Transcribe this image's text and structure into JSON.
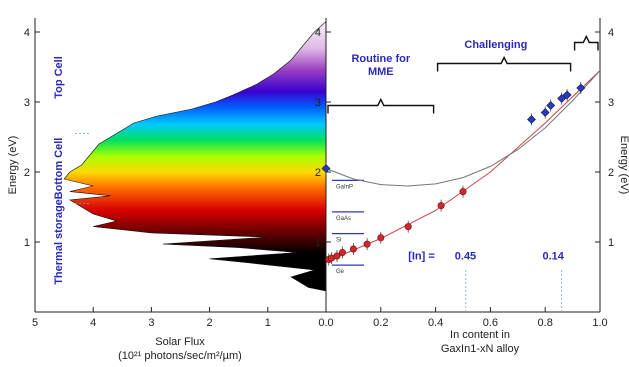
{
  "chart_data": [
    {
      "type": "area",
      "panel": "left",
      "xlabel": "Solar Flux",
      "xlabel_sub": "(10²¹ photons/sec/m²/µm)",
      "ylabel": "Energy (eV)",
      "xlim": [
        5,
        0
      ],
      "ylim": [
        0,
        4.2
      ],
      "x_ticks": [
        "5",
        "4",
        "3",
        "2",
        "1",
        "0.0"
      ],
      "y_ticks": [
        "1",
        "2",
        "3",
        "4"
      ],
      "gradient_fill": "spectrum",
      "series": [
        {
          "points": [
            [
              0.0,
              0.3
            ],
            [
              0.3,
              0.35
            ],
            [
              0.6,
              0.5
            ],
            [
              0.2,
              0.6
            ],
            [
              1.3,
              0.7
            ],
            [
              2.0,
              0.76
            ],
            [
              0.5,
              0.85
            ],
            [
              1.5,
              0.92
            ],
            [
              2.8,
              0.97
            ],
            [
              1.0,
              1.07
            ],
            [
              3.0,
              1.13
            ],
            [
              4.0,
              1.22
            ],
            [
              3.6,
              1.3
            ],
            [
              4.0,
              1.4
            ],
            [
              4.2,
              1.5
            ],
            [
              4.4,
              1.6
            ],
            [
              3.7,
              1.66
            ],
            [
              4.4,
              1.72
            ],
            [
              4.0,
              1.8
            ],
            [
              4.5,
              1.9
            ],
            [
              4.4,
              2.0
            ],
            [
              4.2,
              2.1
            ],
            [
              4.1,
              2.2
            ],
            [
              4.0,
              2.3
            ],
            [
              3.9,
              2.4
            ],
            [
              3.7,
              2.5
            ],
            [
              3.5,
              2.6
            ],
            [
              3.3,
              2.7
            ],
            [
              2.9,
              2.8
            ],
            [
              2.3,
              2.9
            ],
            [
              1.9,
              3.0
            ],
            [
              1.6,
              3.1
            ],
            [
              1.2,
              3.25
            ],
            [
              0.9,
              3.4
            ],
            [
              0.6,
              3.6
            ],
            [
              0.4,
              3.8
            ],
            [
              0.2,
              4.0
            ],
            [
              0.0,
              4.15
            ]
          ]
        }
      ],
      "zone_labels": [
        "Thermal storage",
        "Bottom Cell",
        "Top Cell"
      ]
    },
    {
      "type": "scatter",
      "panel": "right",
      "xlabel": "In content  in",
      "xlabel_sub": "GaxIn1-xN alloy",
      "ylabel": "Energy (eV)",
      "xlim": [
        0,
        1.0
      ],
      "ylim": [
        0,
        4.2
      ],
      "x_ticks": [
        "0.0",
        "0.2",
        "0.4",
        "0.6",
        "0.8",
        "1.0"
      ],
      "y_ticks": [
        "1",
        "2",
        "3",
        "4"
      ],
      "series": [
        {
          "color": "#cc2a2a",
          "marker": "circle",
          "points": [
            [
              0.01,
              0.75
            ],
            [
              0.02,
              0.77
            ],
            [
              0.04,
              0.8
            ],
            [
              0.06,
              0.85
            ],
            [
              0.1,
              0.9
            ],
            [
              0.15,
              0.97
            ],
            [
              0.2,
              1.06
            ],
            [
              0.3,
              1.22
            ],
            [
              0.42,
              1.52
            ],
            [
              0.5,
              1.72
            ]
          ]
        },
        {
          "color": "#2a3ab8",
          "marker": "diamond",
          "points": [
            [
              0.0,
              2.05
            ],
            [
              0.75,
              2.75
            ],
            [
              0.8,
              2.85
            ],
            [
              0.82,
              2.95
            ],
            [
              0.86,
              3.05
            ],
            [
              0.88,
              3.1
            ],
            [
              0.93,
              3.2
            ]
          ]
        }
      ],
      "curves": [
        {
          "name": "fit",
          "color": "#cc4444",
          "points": [
            [
              0.0,
              0.72
            ],
            [
              0.2,
              1.05
            ],
            [
              0.4,
              1.45
            ],
            [
              0.6,
              2.0
            ],
            [
              0.8,
              2.7
            ],
            [
              1.0,
              3.45
            ]
          ]
        },
        {
          "name": "bowing",
          "color": "#777777",
          "points": [
            [
              0.0,
              2.05
            ],
            [
              0.1,
              1.9
            ],
            [
              0.2,
              1.82
            ],
            [
              0.3,
              1.8
            ],
            [
              0.4,
              1.83
            ],
            [
              0.5,
              1.92
            ],
            [
              0.6,
              2.08
            ],
            [
              0.7,
              2.32
            ],
            [
              0.8,
              2.63
            ],
            [
              0.9,
              3.02
            ],
            [
              1.0,
              3.45
            ]
          ]
        }
      ],
      "brackets": [
        {
          "label": "Routine for\nMME",
          "x_range": [
            0.0,
            0.4
          ]
        },
        {
          "label": "Challenging",
          "x_range": [
            0.4,
            0.9
          ]
        },
        {
          "label": "",
          "x_range": [
            0.9,
            1.0
          ]
        }
      ],
      "annotations": [
        "[In] =",
        "0.45",
        "0.14"
      ],
      "reference_lines": [
        "GaInP",
        "GaAs",
        "Si",
        "Ge"
      ]
    }
  ]
}
